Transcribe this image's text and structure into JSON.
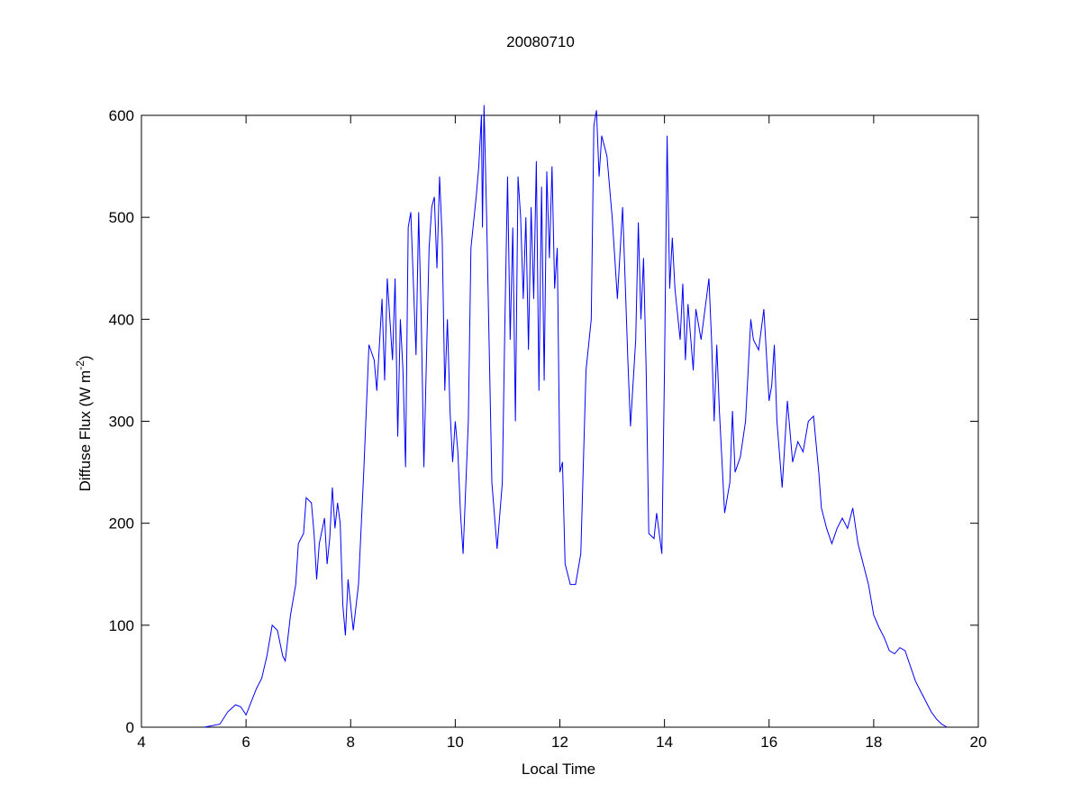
{
  "chart_data": {
    "type": "line",
    "title": "20080710",
    "xlabel": "Local Time",
    "ylabel": {
      "text": "Diffuse Flux (W m",
      "superscript": "-2",
      "suffix": ")"
    },
    "color": "#0000ff",
    "xlim": [
      4,
      20
    ],
    "xticks": [
      4,
      6,
      8,
      10,
      12,
      14,
      16,
      18,
      20
    ],
    "ylim": [
      0,
      600
    ],
    "yticks": [
      0,
      100,
      200,
      300,
      400,
      500,
      600
    ],
    "x": [
      5.2,
      5.5,
      5.65,
      5.8,
      5.9,
      6.0,
      6.1,
      6.2,
      6.3,
      6.4,
      6.5,
      6.6,
      6.7,
      6.75,
      6.85,
      6.95,
      7.0,
      7.1,
      7.15,
      7.25,
      7.3,
      7.35,
      7.4,
      7.5,
      7.55,
      7.6,
      7.65,
      7.7,
      7.75,
      7.8,
      7.85,
      7.9,
      7.95,
      8.05,
      8.15,
      8.25,
      8.35,
      8.45,
      8.5,
      8.6,
      8.65,
      8.7,
      8.8,
      8.85,
      8.9,
      8.95,
      9.0,
      9.05,
      9.1,
      9.15,
      9.25,
      9.3,
      9.35,
      9.4,
      9.5,
      9.55,
      9.6,
      9.65,
      9.7,
      9.75,
      9.8,
      9.85,
      9.9,
      9.95,
      10.0,
      10.05,
      10.1,
      10.15,
      10.25,
      10.3,
      10.4,
      10.45,
      10.5,
      10.52,
      10.55,
      10.6,
      10.7,
      10.8,
      10.9,
      10.95,
      11.0,
      11.05,
      11.1,
      11.15,
      11.2,
      11.25,
      11.3,
      11.35,
      11.4,
      11.45,
      11.5,
      11.55,
      11.6,
      11.65,
      11.7,
      11.75,
      11.8,
      11.85,
      11.9,
      11.95,
      12.0,
      12.05,
      12.1,
      12.2,
      12.3,
      12.4,
      12.5,
      12.6,
      12.65,
      12.7,
      12.75,
      12.8,
      12.9,
      13.0,
      13.1,
      13.2,
      13.3,
      13.35,
      13.45,
      13.5,
      13.55,
      13.6,
      13.65,
      13.7,
      13.8,
      13.85,
      13.95,
      14.0,
      14.05,
      14.1,
      14.15,
      14.2,
      14.3,
      14.35,
      14.4,
      14.45,
      14.55,
      14.6,
      14.7,
      14.8,
      14.85,
      14.9,
      14.95,
      15.0,
      15.05,
      15.15,
      15.25,
      15.3,
      15.35,
      15.45,
      15.55,
      15.65,
      15.7,
      15.8,
      15.9,
      16.0,
      16.05,
      16.1,
      16.15,
      16.25,
      16.35,
      16.45,
      16.55,
      16.65,
      16.75,
      16.85,
      16.95,
      17.0,
      17.1,
      17.2,
      17.3,
      17.4,
      17.5,
      17.6,
      17.7,
      17.8,
      17.9,
      18.0,
      18.1,
      18.2,
      18.3,
      18.4,
      18.5,
      18.6,
      18.7,
      18.8,
      18.9,
      19.0,
      19.1,
      19.2,
      19.3,
      19.4
    ],
    "values": [
      0,
      3,
      15,
      22,
      20,
      12,
      25,
      38,
      48,
      70,
      100,
      95,
      70,
      65,
      110,
      140,
      180,
      190,
      225,
      220,
      190,
      145,
      180,
      205,
      160,
      185,
      235,
      195,
      220,
      200,
      120,
      90,
      145,
      95,
      140,
      250,
      375,
      360,
      330,
      420,
      340,
      440,
      360,
      440,
      285,
      400,
      350,
      255,
      490,
      505,
      365,
      505,
      400,
      255,
      470,
      510,
      520,
      450,
      540,
      480,
      330,
      400,
      310,
      260,
      300,
      270,
      210,
      170,
      300,
      470,
      520,
      550,
      600,
      490,
      610,
      500,
      240,
      175,
      240,
      400,
      540,
      380,
      490,
      300,
      540,
      500,
      420,
      500,
      370,
      510,
      420,
      555,
      330,
      530,
      340,
      545,
      460,
      550,
      430,
      470,
      250,
      260,
      160,
      140,
      140,
      170,
      350,
      400,
      590,
      605,
      540,
      580,
      560,
      500,
      420,
      510,
      360,
      295,
      380,
      495,
      400,
      460,
      350,
      190,
      185,
      210,
      170,
      350,
      580,
      430,
      480,
      430,
      380,
      435,
      360,
      415,
      350,
      410,
      380,
      420,
      440,
      380,
      300,
      375,
      310,
      210,
      240,
      310,
      250,
      265,
      300,
      400,
      380,
      370,
      410,
      320,
      335,
      375,
      300,
      235,
      320,
      260,
      280,
      270,
      300,
      305,
      250,
      215,
      195,
      180,
      195,
      205,
      195,
      215,
      180,
      160,
      140,
      110,
      98,
      88,
      75,
      72,
      78,
      75,
      60,
      45,
      35,
      25,
      15,
      8,
      3,
      0
    ]
  }
}
